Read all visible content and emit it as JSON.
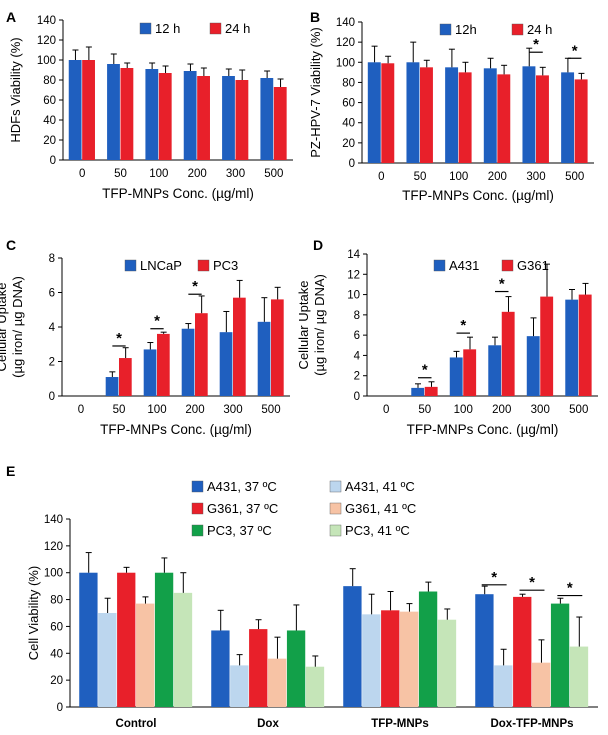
{
  "chart_data": [
    {
      "type": "bar",
      "panel_label": "A",
      "title": "",
      "xlabel": "TFP-MNPs Conc. (µg/ml)",
      "ylabel": "HDFs Viability (%)",
      "ylim": [
        0,
        140
      ],
      "yticks": [
        0,
        20,
        40,
        60,
        80,
        100,
        120,
        140
      ],
      "categories": [
        "0",
        "50",
        "100",
        "200",
        "300",
        "500"
      ],
      "legend": "top-center",
      "series": [
        {
          "name": "12 h",
          "color": "#1f5fbf",
          "values": [
            100,
            96,
            91,
            89,
            84,
            82
          ],
          "errors": [
            10,
            10,
            6,
            7,
            7,
            7
          ]
        },
        {
          "name": "24 h",
          "color": "#e8202a",
          "values": [
            100,
            92,
            87,
            84,
            80,
            73
          ],
          "errors": [
            13,
            5,
            7,
            8,
            10,
            8
          ]
        }
      ],
      "significance": [],
      "sig_symbol": "*"
    },
    {
      "type": "bar",
      "panel_label": "B",
      "title": "",
      "xlabel": "TFP-MNPs Conc. (µg/ml)",
      "ylabel": "PZ-HPV-7 Viability (%)",
      "ylim": [
        0,
        140
      ],
      "yticks": [
        0,
        20,
        40,
        60,
        80,
        100,
        120,
        140
      ],
      "categories": [
        "0",
        "50",
        "100",
        "200",
        "300",
        "500"
      ],
      "legend": "top-center",
      "series": [
        {
          "name": "12h",
          "color": "#1f5fbf",
          "values": [
            100,
            100,
            95,
            94,
            96,
            90
          ],
          "errors": [
            16,
            20,
            18,
            10,
            18,
            14
          ]
        },
        {
          "name": "24 h",
          "color": "#e8202a",
          "values": [
            99,
            95,
            90,
            88,
            87,
            83
          ],
          "errors": [
            7,
            7,
            10,
            9,
            8,
            6
          ]
        }
      ],
      "significance": [
        {
          "category": 4,
          "y": 110
        },
        {
          "category": 5,
          "y": 104
        }
      ],
      "sig_symbol": "*"
    },
    {
      "type": "bar",
      "panel_label": "C",
      "title": "",
      "xlabel": "TFP-MNPs Conc. (µg/ml)",
      "ylabel": "Cellular Uptake\n(µg iron/ µg DNA)",
      "ylim": [
        0,
        8
      ],
      "yticks": [
        0,
        2,
        4,
        6,
        8
      ],
      "categories": [
        "0",
        "50",
        "100",
        "200",
        "300",
        "500"
      ],
      "legend": "top-center",
      "series": [
        {
          "name": "LNCaP",
          "color": "#1f5fbf",
          "values": [
            0,
            1.1,
            2.7,
            3.9,
            3.7,
            4.3
          ],
          "errors": [
            0,
            0.3,
            0.4,
            0.3,
            1.2,
            1.4
          ]
        },
        {
          "name": "PC3",
          "color": "#e8202a",
          "values": [
            0,
            2.2,
            3.6,
            4.8,
            5.7,
            5.6
          ],
          "errors": [
            0,
            0.6,
            0.1,
            1.0,
            1.0,
            0.7
          ]
        }
      ],
      "significance": [
        {
          "category": 1,
          "y": 2.9
        },
        {
          "category": 2,
          "y": 3.9
        },
        {
          "category": 3,
          "y": 5.9
        }
      ],
      "sig_symbol": "*"
    },
    {
      "type": "bar",
      "panel_label": "D",
      "title": "",
      "xlabel": "TFP-MNPs Conc. (µg/ml)",
      "ylabel": "Cellular Uptake\n(µg iron/ µg DNA)",
      "ylim": [
        0,
        14
      ],
      "yticks": [
        0,
        2,
        4,
        6,
        8,
        10,
        12,
        14
      ],
      "categories": [
        "0",
        "50",
        "100",
        "200",
        "300",
        "500"
      ],
      "legend": "top-center",
      "series": [
        {
          "name": "A431",
          "color": "#1f5fbf",
          "values": [
            0,
            0.8,
            3.8,
            5.0,
            5.9,
            9.5
          ],
          "errors": [
            0,
            0.4,
            0.6,
            0.8,
            1.8,
            1.0
          ]
        },
        {
          "name": "G361",
          "color": "#e8202a",
          "values": [
            0,
            0.9,
            4.6,
            8.3,
            9.8,
            10.0
          ],
          "errors": [
            0,
            0.5,
            1.2,
            1.5,
            3.2,
            1.1
          ]
        }
      ],
      "significance": [
        {
          "category": 1,
          "y": 1.8
        },
        {
          "category": 2,
          "y": 6.2
        },
        {
          "category": 3,
          "y": 10.3
        }
      ],
      "sig_symbol": "*"
    },
    {
      "type": "bar",
      "panel_label": "E",
      "title": "",
      "xlabel": "",
      "ylabel": "Cell Viability (%)",
      "ylim": [
        0,
        140
      ],
      "yticks": [
        0,
        20,
        40,
        60,
        80,
        100,
        120,
        140
      ],
      "categories": [
        "Control",
        "Dox",
        "TFP-MNPs",
        "Dox-TFP-MNPs"
      ],
      "legend": "top-right",
      "series": [
        {
          "name": "A431, 37 ºC",
          "color": "#1f5fbf",
          "values": [
            100,
            57,
            90,
            84
          ],
          "errors": [
            15,
            15,
            13,
            6
          ]
        },
        {
          "name": "A431, 41 ºC",
          "color": "#bcd6ee",
          "values": [
            70,
            31,
            69,
            31
          ],
          "errors": [
            11,
            8,
            15,
            12
          ]
        },
        {
          "name": "G361, 37 ºC",
          "color": "#e8202a",
          "values": [
            100,
            58,
            72,
            82
          ],
          "errors": [
            4,
            7,
            14,
            2
          ]
        },
        {
          "name": "G361, 41 ºC",
          "color": "#f7c3a5",
          "values": [
            77,
            36,
            71,
            33
          ],
          "errors": [
            5,
            16,
            6,
            17
          ]
        },
        {
          "name": "PC3, 37 ºC",
          "color": "#12a049",
          "values": [
            100,
            57,
            86,
            77
          ],
          "errors": [
            11,
            19,
            7,
            4
          ]
        },
        {
          "name": "PC3, 41 ºC",
          "color": "#c5e5b8",
          "values": [
            85,
            30,
            65,
            45
          ],
          "errors": [
            15,
            8,
            8,
            22
          ]
        }
      ],
      "significance_pairs": [
        {
          "category": 3,
          "from": 0,
          "to": 1,
          "y": 91
        },
        {
          "category": 3,
          "from": 2,
          "to": 3,
          "y": 87
        },
        {
          "category": 3,
          "from": 4,
          "to": 5,
          "y": 83
        }
      ],
      "sig_symbol": "*"
    }
  ]
}
